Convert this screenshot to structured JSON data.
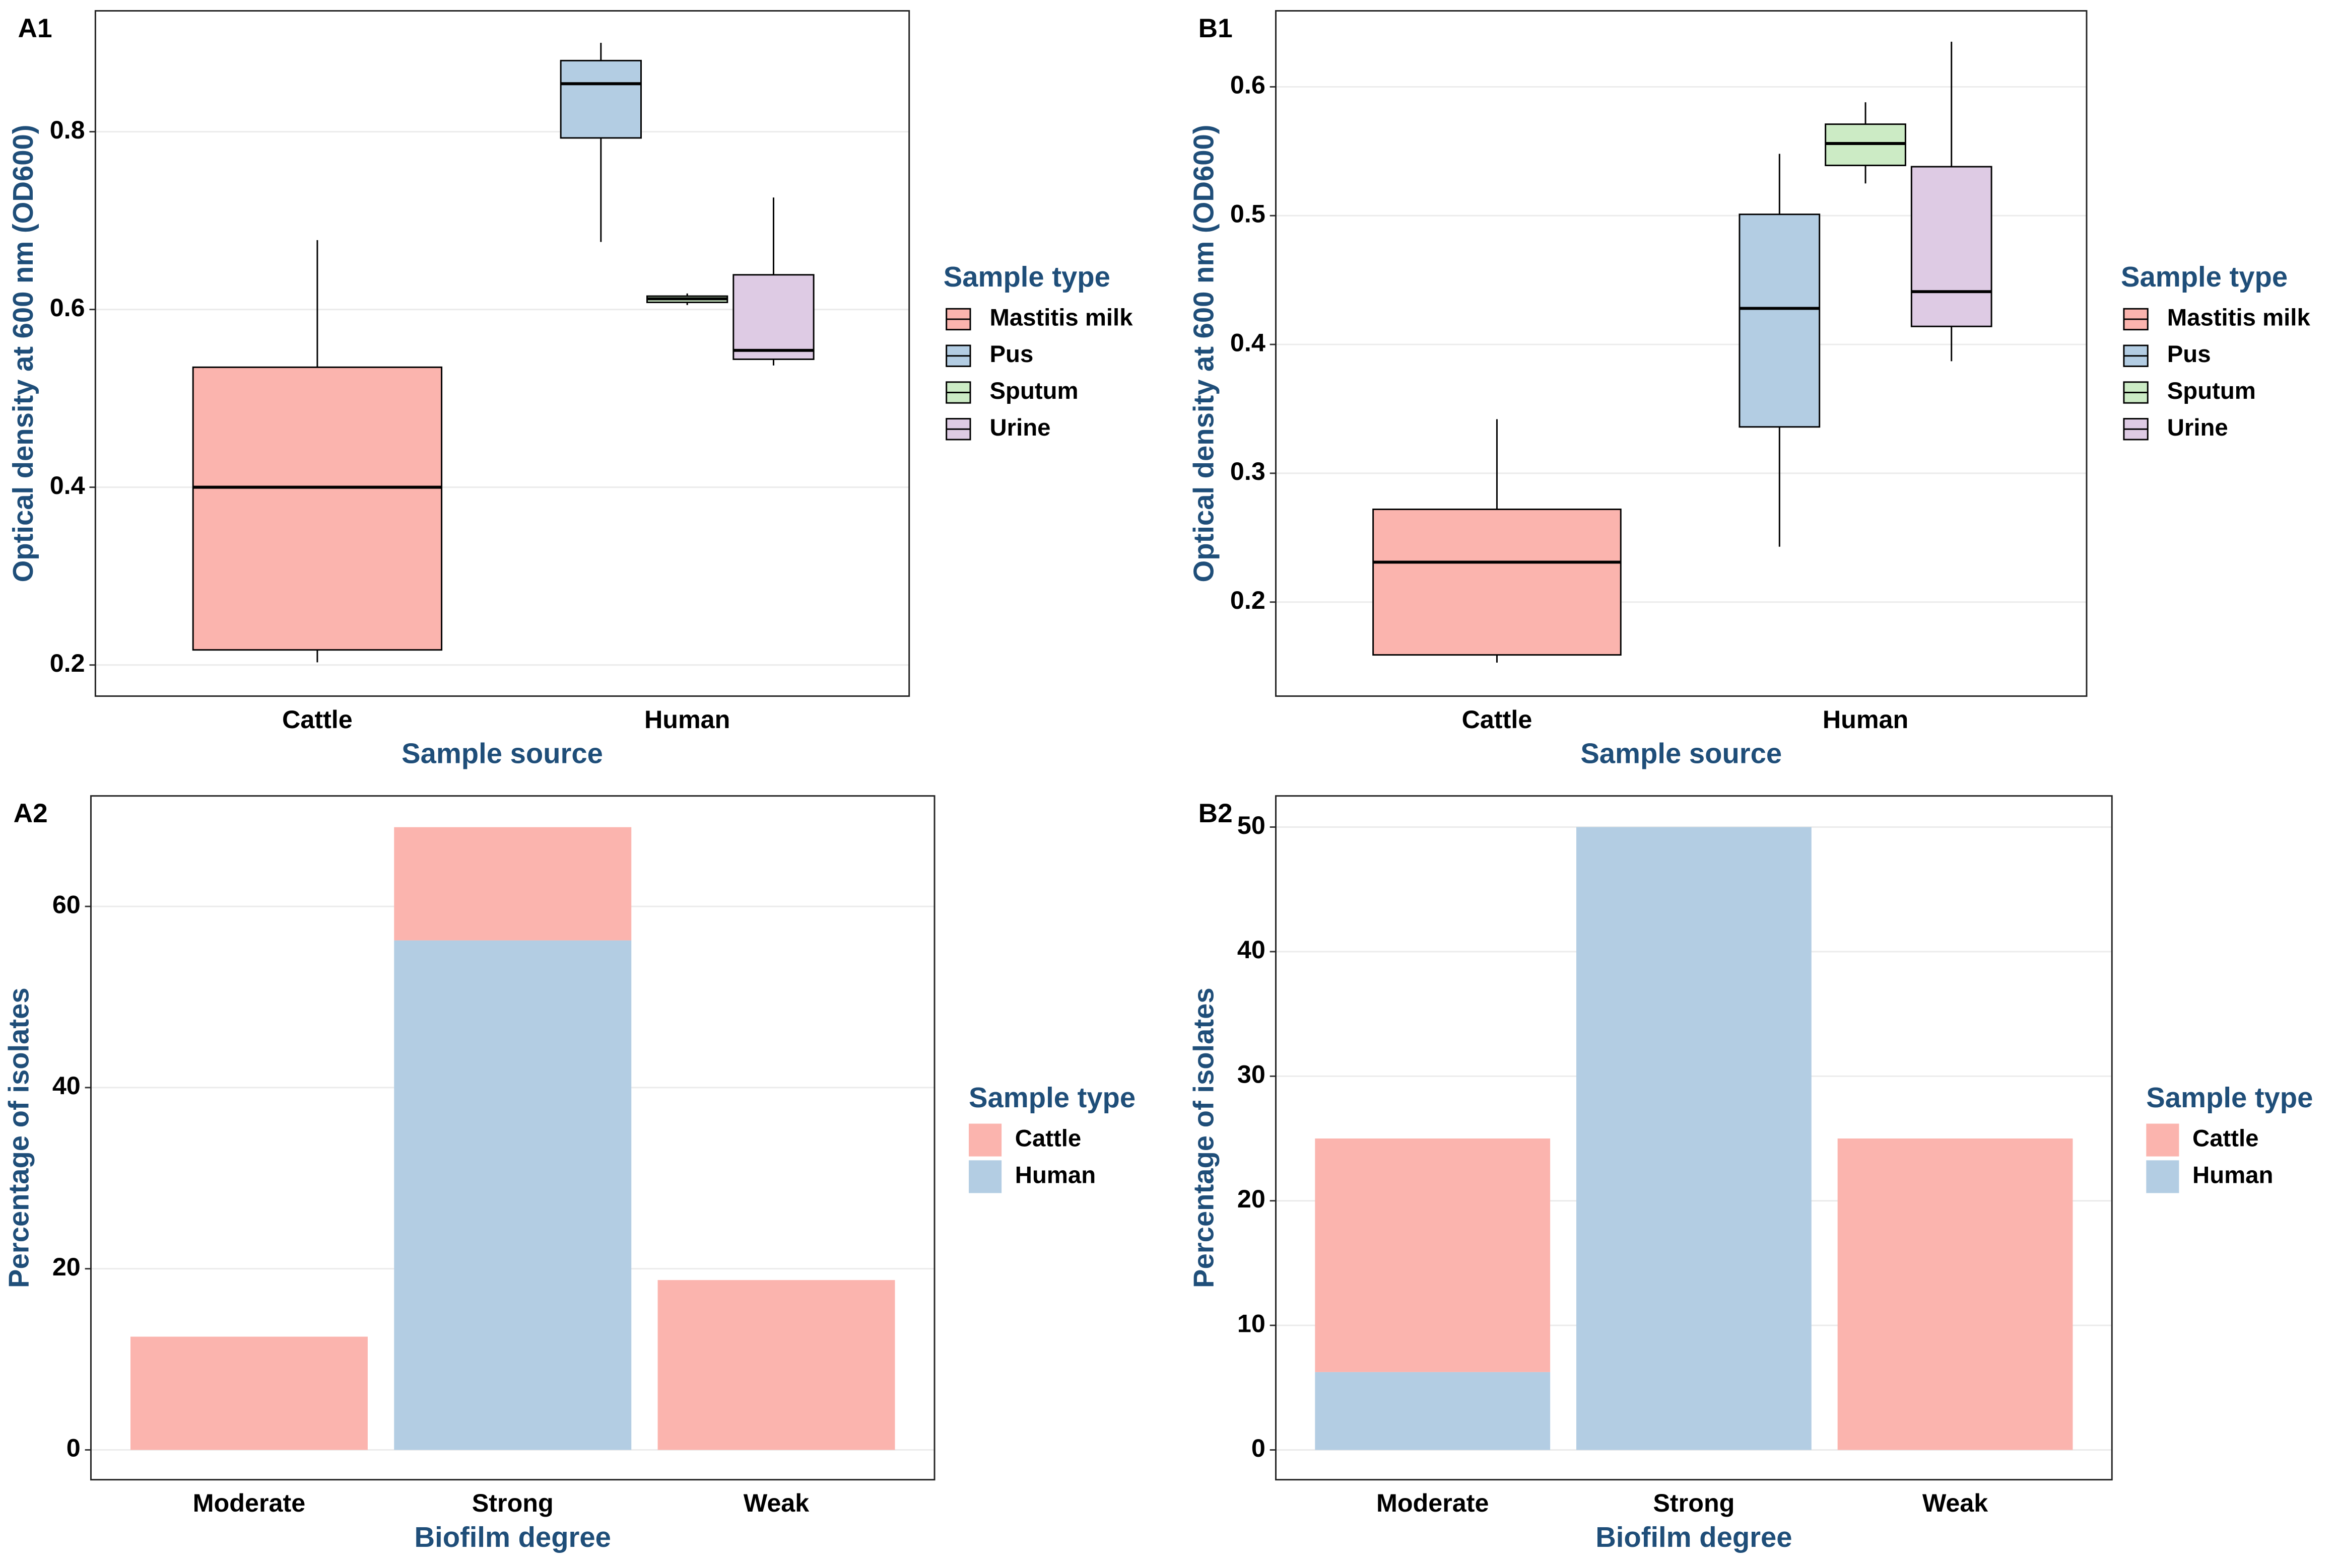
{
  "chart_data": [
    {
      "type": "box",
      "label": "A1",
      "x_label": "Sample source",
      "y_label": "Optical density at 600 nm (OD600)",
      "legend_title": "Sample type",
      "categories": [
        "Cattle",
        "Human"
      ],
      "ylim": [
        0.165,
        0.936
      ],
      "yticks": [
        0.2,
        0.4,
        0.6,
        0.8
      ],
      "grid": true,
      "series": [
        {
          "name": "Mastitis milk",
          "color": "#fbb4ae",
          "values": [
            {
              "min": 0.203,
              "q1": 0.217,
              "median": 0.4,
              "q3": 0.535,
              "max": 0.678
            },
            null
          ]
        },
        {
          "name": "Pus",
          "color": "#b3cde3",
          "values": [
            null,
            {
              "min": 0.676,
              "q1": 0.793,
              "median": 0.854,
              "q3": 0.88,
              "max": 0.9
            }
          ]
        },
        {
          "name": "Sputum",
          "color": "#ccebc5",
          "values": [
            null,
            {
              "min": 0.605,
              "q1": 0.608,
              "median": 0.612,
              "q3": 0.615,
              "max": 0.618
            }
          ]
        },
        {
          "name": "Urine",
          "color": "#decbe4",
          "values": [
            null,
            {
              "min": 0.537,
              "q1": 0.544,
              "median": 0.554,
              "q3": 0.639,
              "max": 0.726
            }
          ]
        }
      ]
    },
    {
      "type": "box",
      "label": "B1",
      "x_label": "Sample source",
      "y_label": "Optical density at 600 nm (OD600)",
      "legend_title": "Sample type",
      "categories": [
        "Cattle",
        "Human"
      ],
      "ylim": [
        0.127,
        0.659
      ],
      "yticks": [
        0.2,
        0.3,
        0.4,
        0.5,
        0.6
      ],
      "grid": true,
      "series": [
        {
          "name": "Mastitis milk",
          "color": "#fbb4ae",
          "values": [
            {
              "min": 0.153,
              "q1": 0.159,
              "median": 0.231,
              "q3": 0.272,
              "max": 0.342
            },
            null
          ]
        },
        {
          "name": "Pus",
          "color": "#b3cde3",
          "values": [
            null,
            {
              "min": 0.243,
              "q1": 0.336,
              "median": 0.428,
              "q3": 0.501,
              "max": 0.548
            }
          ]
        },
        {
          "name": "Sputum",
          "color": "#ccebc5",
          "values": [
            null,
            {
              "min": 0.525,
              "q1": 0.539,
              "median": 0.556,
              "q3": 0.571,
              "max": 0.588
            }
          ]
        },
        {
          "name": "Urine",
          "color": "#decbe4",
          "values": [
            null,
            {
              "min": 0.387,
              "q1": 0.414,
              "median": 0.441,
              "q3": 0.538,
              "max": 0.635
            }
          ]
        }
      ]
    },
    {
      "type": "bar",
      "stacked": true,
      "label": "A2",
      "x_label": "Biofilm degree",
      "y_label": "Percentage of isolates",
      "legend_title": "Sample type",
      "categories": [
        "Moderate",
        "Strong",
        "Weak"
      ],
      "ylim": [
        -3.29,
        72.2
      ],
      "yticks": [
        0,
        20,
        40,
        60
      ],
      "grid": true,
      "series": [
        {
          "name": "Cattle",
          "color": "#fbb4ae",
          "values": [
            12.5,
            12.5,
            18.75
          ]
        },
        {
          "name": "Human",
          "color": "#b3cde3",
          "values": [
            0,
            56.25,
            0
          ]
        }
      ]
    },
    {
      "type": "bar",
      "stacked": true,
      "label": "B2",
      "x_label": "Biofilm degree",
      "y_label": "Percentage of isolates",
      "legend_title": "Sample type",
      "categories": [
        "Moderate",
        "Strong",
        "Weak"
      ],
      "ylim": [
        -2.39,
        52.5
      ],
      "yticks": [
        0,
        10,
        20,
        30,
        40,
        50
      ],
      "grid": true,
      "series": [
        {
          "name": "Cattle",
          "color": "#fbb4ae",
          "values": [
            18.75,
            0,
            25
          ]
        },
        {
          "name": "Human",
          "color": "#b3cde3",
          "values": [
            6.25,
            50,
            0
          ]
        }
      ]
    }
  ]
}
